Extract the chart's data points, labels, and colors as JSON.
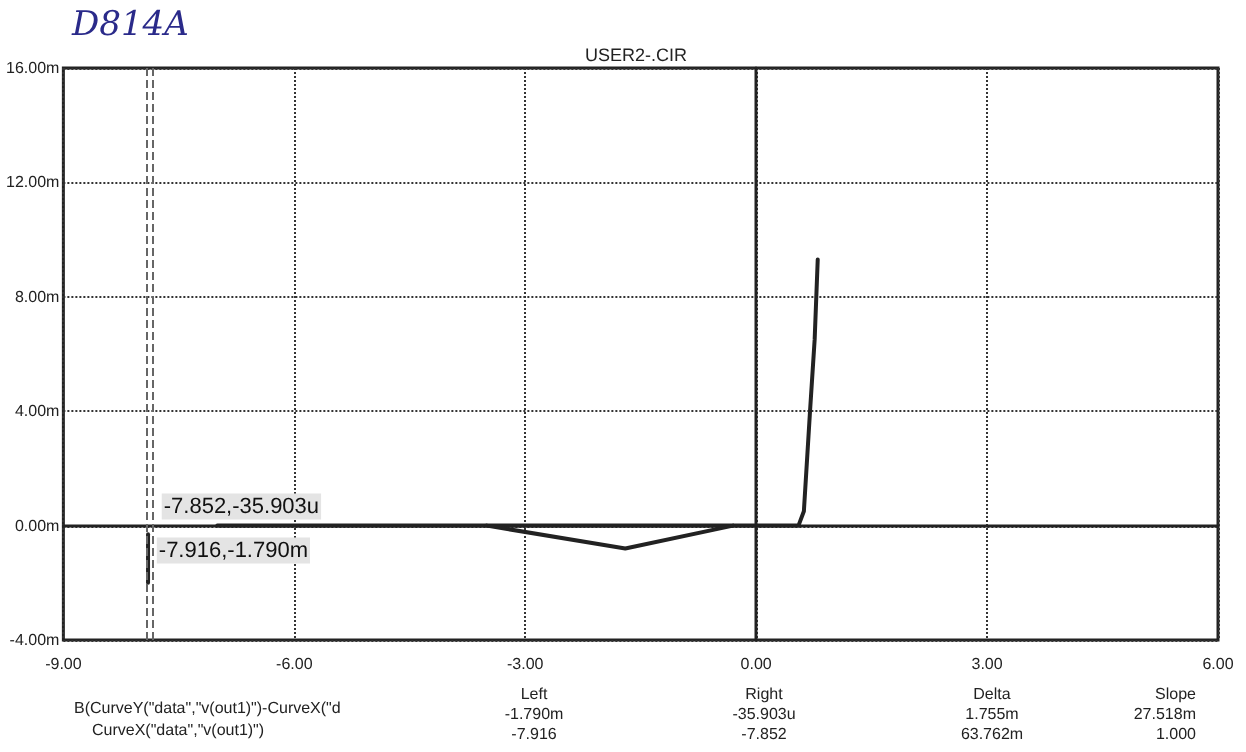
{
  "chart_data": {
    "type": "line",
    "title": "USER2-.CIR",
    "annotations": [
      "D814A",
      "B(CurveY(\"data\",\"v(out1)\")-CurveX(\"d",
      "CurveX(\"data\",\"v(out1)\")",
      "Left",
      "-1.790m",
      "-7.916",
      "Right",
      "-35.903u",
      "-7.852",
      "Delta",
      "1.755m",
      "63.762m",
      "Slope",
      "27.518m",
      "1.000"
    ],
    "series": [
      {
        "color": "#222222",
        "x": [
          -7.9,
          -7.9
        ],
        "values": [
          -0.3,
          -2.0
        ]
      },
      {
        "color": "#222222",
        "x": [
          -7.0,
          0.55,
          0.62,
          0.7,
          0.76,
          0.8
        ],
        "values": [
          0,
          0,
          0.5,
          4,
          6.5,
          9.3
        ]
      },
      {
        "color": "#222222",
        "x": [
          -3.5,
          -1.7,
          -0.3
        ],
        "values": [
          0,
          -0.8,
          0
        ]
      }
    ],
    "xlim": [
      -9,
      6
    ],
    "xticks": [
      {
        "value": -9,
        "label": "-9.00"
      },
      {
        "value": -6,
        "label": "-6.00"
      },
      {
        "value": -3,
        "label": "-3.00"
      },
      {
        "value": 0,
        "label": "0.00"
      },
      {
        "value": 3,
        "label": "3.00"
      },
      {
        "value": 6,
        "label": "6.00"
      }
    ],
    "ylim": [
      -4,
      16
    ],
    "yticks": [
      {
        "value": -4,
        "label": "-4.00m"
      },
      {
        "value": 0,
        "label": "0.00m"
      },
      {
        "value": 4,
        "label": "4.00m"
      },
      {
        "value": 8,
        "label": "8.00m"
      },
      {
        "value": 12,
        "label": "12.00m"
      },
      {
        "value": 16,
        "label": "16.00m"
      }
    ],
    "ref_lines": [
      {
        "axis": "x",
        "value": -7.852,
        "label": "-7.852,-35.903u"
      },
      {
        "axis": "x",
        "value": -7.916,
        "label": "-7.916,-1.790m"
      }
    ],
    "grid": true,
    "marker": "none",
    "line_style": "solid"
  }
}
